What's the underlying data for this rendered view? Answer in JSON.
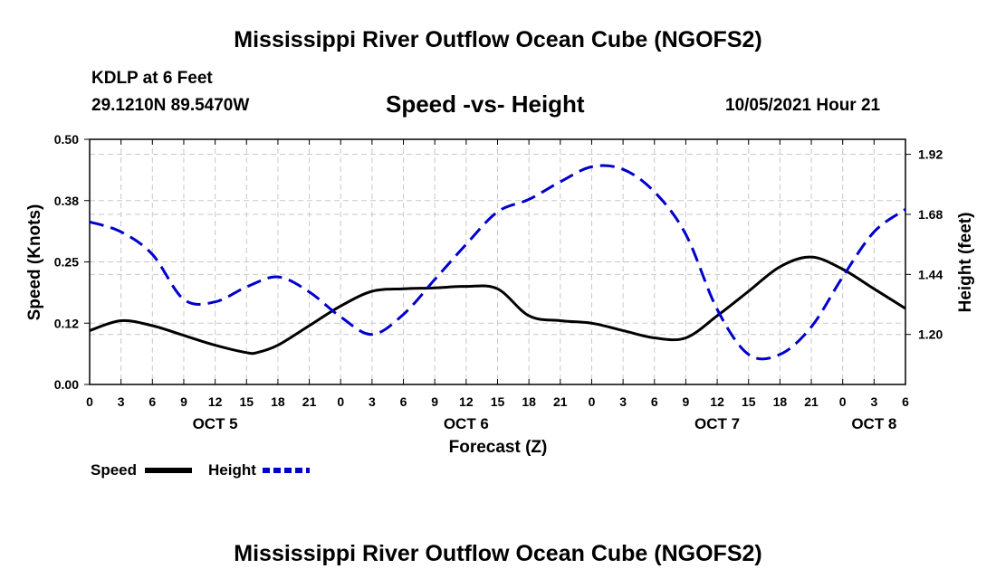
{
  "header": {
    "title": "Mississippi River Outflow Ocean Cube (NGOFS2)",
    "station": "KDLP at 6 Feet",
    "coords": "29.1210N  89.5470W",
    "subtitle": "Speed -vs- Height",
    "datetime": "10/05/2021 Hour 21"
  },
  "footer": {
    "title": "Mississippi River Outflow Ocean Cube (NGOFS2)"
  },
  "chart_data": {
    "type": "line",
    "xlabel": "Forecast (Z)",
    "ylabel": "Speed (Knots)",
    "y2label": "Height (feet)",
    "x_unit": "forecast hours from 00Z Oct 5",
    "xlim": [
      0,
      78
    ],
    "ylim": [
      0,
      0.5
    ],
    "y2lim": [
      1.0,
      1.98
    ],
    "grid": true,
    "x_ticks": [
      {
        "x": 0,
        "label": "0"
      },
      {
        "x": 3,
        "label": "3"
      },
      {
        "x": 6,
        "label": "6"
      },
      {
        "x": 9,
        "label": "9"
      },
      {
        "x": 12,
        "label": "12"
      },
      {
        "x": 15,
        "label": "15"
      },
      {
        "x": 18,
        "label": "18"
      },
      {
        "x": 21,
        "label": "21"
      },
      {
        "x": 24,
        "label": "0"
      },
      {
        "x": 27,
        "label": "3"
      },
      {
        "x": 30,
        "label": "6"
      },
      {
        "x": 33,
        "label": "9"
      },
      {
        "x": 36,
        "label": "12"
      },
      {
        "x": 39,
        "label": "15"
      },
      {
        "x": 42,
        "label": "18"
      },
      {
        "x": 45,
        "label": "21"
      },
      {
        "x": 48,
        "label": "0"
      },
      {
        "x": 51,
        "label": "3"
      },
      {
        "x": 54,
        "label": "6"
      },
      {
        "x": 57,
        "label": "9"
      },
      {
        "x": 60,
        "label": "12"
      },
      {
        "x": 63,
        "label": "15"
      },
      {
        "x": 66,
        "label": "18"
      },
      {
        "x": 69,
        "label": "21"
      },
      {
        "x": 72,
        "label": "0"
      },
      {
        "x": 75,
        "label": "3"
      },
      {
        "x": 78,
        "label": "6"
      }
    ],
    "day_labels": [
      {
        "x": 12,
        "label": "OCT 5"
      },
      {
        "x": 36,
        "label": "OCT 6"
      },
      {
        "x": 60,
        "label": "OCT 7"
      },
      {
        "x": 75,
        "label": "OCT 8"
      }
    ],
    "y_ticks": [
      {
        "y": 0.0,
        "label": "0.00"
      },
      {
        "y": 0.125,
        "label": "0.12"
      },
      {
        "y": 0.25,
        "label": "0.25"
      },
      {
        "y": 0.375,
        "label": "0.38"
      },
      {
        "y": 0.5,
        "label": "0.50"
      }
    ],
    "y2_ticks": [
      {
        "y": 1.2,
        "label": "1.20"
      },
      {
        "y": 1.44,
        "label": "1.44"
      },
      {
        "y": 1.68,
        "label": "1.68"
      },
      {
        "y": 1.92,
        "label": "1.92"
      }
    ],
    "series": [
      {
        "name": "Speed",
        "axis": "left",
        "color": "#000000",
        "style": "solid",
        "x": [
          0,
          3,
          6,
          9,
          12,
          15,
          16,
          18,
          21,
          24,
          27,
          30,
          33,
          36,
          39,
          42,
          45,
          48,
          51,
          54,
          57,
          60,
          63,
          66,
          69,
          72,
          75,
          78
        ],
        "y": [
          0.11,
          0.13,
          0.12,
          0.1,
          0.08,
          0.065,
          0.065,
          0.08,
          0.12,
          0.16,
          0.19,
          0.195,
          0.197,
          0.2,
          0.195,
          0.14,
          0.13,
          0.125,
          0.11,
          0.095,
          0.095,
          0.14,
          0.19,
          0.24,
          0.26,
          0.235,
          0.195,
          0.155
        ]
      },
      {
        "name": "Height",
        "axis": "right",
        "color": "#0000cc",
        "style": "dashed",
        "x": [
          0,
          3,
          6,
          9,
          12,
          15,
          18,
          21,
          24,
          27,
          30,
          33,
          36,
          39,
          42,
          45,
          48,
          51,
          54,
          57,
          60,
          63,
          66,
          69,
          72,
          75,
          78
        ],
        "y": [
          1.65,
          1.61,
          1.52,
          1.34,
          1.33,
          1.39,
          1.43,
          1.37,
          1.27,
          1.2,
          1.28,
          1.42,
          1.56,
          1.69,
          1.74,
          1.81,
          1.87,
          1.86,
          1.77,
          1.6,
          1.3,
          1.12,
          1.12,
          1.23,
          1.43,
          1.61,
          1.7
        ]
      }
    ]
  }
}
